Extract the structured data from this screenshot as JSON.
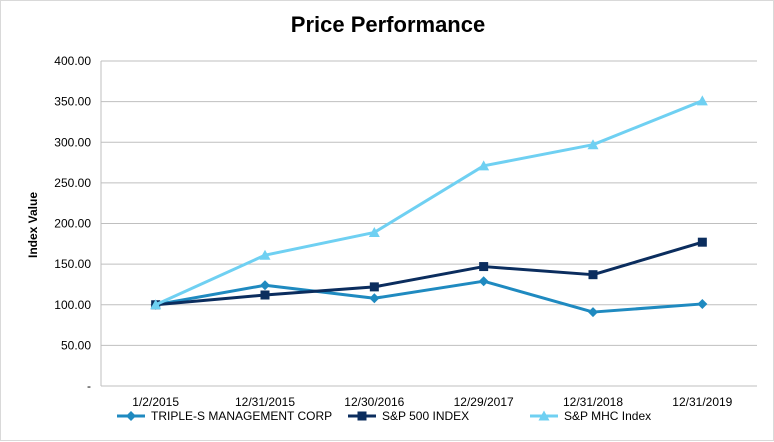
{
  "chart_data": {
    "type": "line",
    "title": "Price Performance",
    "xlabel": "",
    "ylabel": "Index Value",
    "categories": [
      "1/2/2015",
      "12/31/2015",
      "12/30/2016",
      "12/29/2017",
      "12/31/2018",
      "12/31/2019"
    ],
    "ylim": [
      0,
      400
    ],
    "yticks": [
      0,
      50,
      100,
      150,
      200,
      250,
      300,
      350,
      400
    ],
    "ytick_labels": [
      "-",
      "50.00",
      "100.00",
      "150.00",
      "200.00",
      "250.00",
      "300.00",
      "350.00",
      "400.00"
    ],
    "grid": true,
    "legend_position": "bottom",
    "series": [
      {
        "name": "TRIPLE-S MANAGEMENT CORP",
        "marker": "diamond",
        "color": "#1f8ac0",
        "values": [
          100,
          124,
          108,
          129,
          91,
          101
        ]
      },
      {
        "name": "S&P 500 INDEX",
        "marker": "square",
        "color": "#0b2d5e",
        "values": [
          100,
          112,
          122,
          147,
          137,
          177
        ]
      },
      {
        "name": "S&P MHC Index",
        "marker": "triangle",
        "color": "#6fd0f2",
        "values": [
          100,
          161,
          189,
          271,
          297,
          351
        ]
      }
    ]
  }
}
